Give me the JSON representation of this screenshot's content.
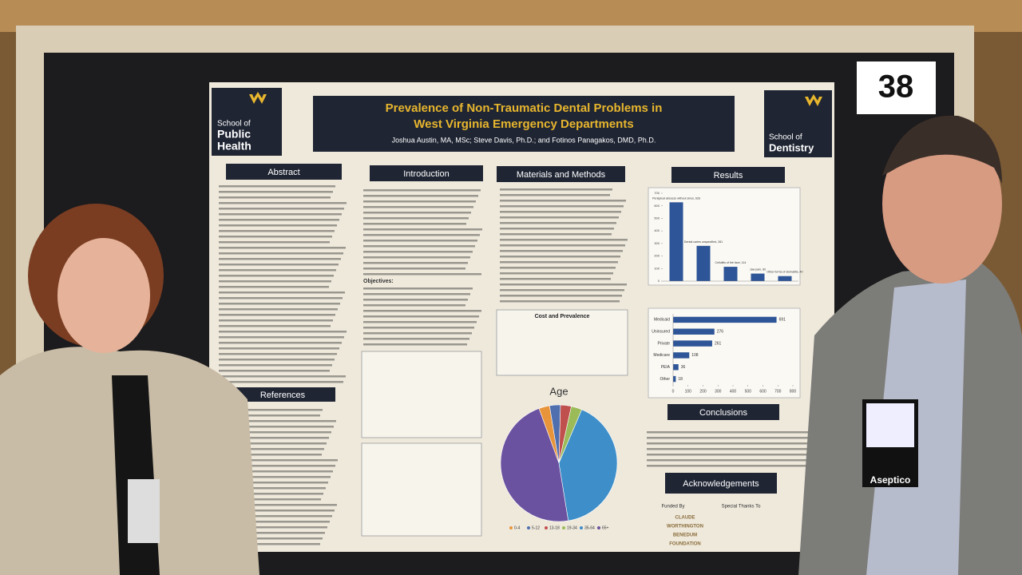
{
  "sign_number": "38",
  "poster": {
    "title": [
      "Prevalence of Non-Traumatic Dental Problems in",
      "West Virginia Emergency Departments"
    ],
    "authors": "Joshua Austin, MA, MSc; Steve Davis, Ph.D.; and Fotinos Panagakos, DMD, Ph.D.",
    "logo_left": [
      "School of",
      "Public",
      "Health"
    ],
    "logo_right": [
      "School of",
      "Dentistry"
    ],
    "sections": [
      "Abstract",
      "Introduction",
      "Materials and Methods",
      "Results",
      "References",
      "Conclusions",
      "Acknowledgements"
    ],
    "objectives": "Objectives:",
    "cost_title": "Cost and Prevalence",
    "funded_by": "Funded By",
    "special_thanks": "Special Thanks To",
    "funders": [
      "CLAUDE",
      "WORTHINGTON",
      "BENEDUM",
      "FOUNDATION"
    ],
    "badge": "Aseptico"
  },
  "chart_data": [
    {
      "type": "bar",
      "categories": [
        "Periapical abscess without sinus",
        "Dental caries unspecified",
        "Cellulitis of the face",
        "Jaw pain",
        "Other forms of stomatitis"
      ],
      "values": [
        628,
        281,
        114,
        60,
        40
      ],
      "value_labels": [
        "Periapical abscess without sinus, 628",
        "Dental caries unspecified, 281",
        "Cellulitis of the face, 114",
        "Jaw pain, 60",
        "Other forms of stomatitis, 40"
      ],
      "color": "#2e5597",
      "ylim": [
        0,
        700
      ],
      "yticks": [
        0,
        100,
        200,
        300,
        400,
        500,
        600,
        700
      ]
    },
    {
      "type": "hbar",
      "categories": [
        "Medicaid",
        "Uninsured",
        "Private",
        "Medicare",
        "PEIA",
        "Other"
      ],
      "values": [
        691,
        276,
        261,
        108,
        36,
        18
      ],
      "color": "#2e5597",
      "xlim": [
        0,
        800
      ],
      "xticks": [
        0,
        100,
        200,
        300,
        400,
        500,
        600,
        700,
        800
      ]
    },
    {
      "type": "pie",
      "title": "Age",
      "categories": [
        "0-4",
        "5-12",
        "13-18",
        "19-34",
        "35-64",
        "65+"
      ],
      "values": [
        3,
        3,
        3,
        3,
        41,
        47
      ],
      "colors": [
        "#e8943a",
        "#4f6fae",
        "#c0504d",
        "#9bbb59",
        "#3d8ec9",
        "#6a52a0"
      ]
    }
  ]
}
